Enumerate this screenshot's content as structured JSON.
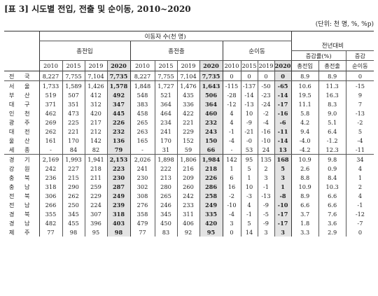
{
  "title": "[표 3] 시도별 전입, 전출 및 순이동, 2010~2020",
  "unit": "(단위: 천 명, %, %p)",
  "header": {
    "group": "이동자 수(천 명)",
    "in_out": [
      "총전입",
      "총전출"
    ],
    "net": "순이동",
    "compare": "전년대비",
    "rate": "증감률(%)",
    "change": "증감",
    "tail_cols": [
      "총전입",
      "총전출",
      "순이동"
    ],
    "years": [
      "2010",
      "2015",
      "2019",
      "2020"
    ]
  },
  "rows": [
    {
      "region": "전 국",
      "in": [
        "8,227",
        "7,755",
        "7,104",
        "7,735"
      ],
      "out": [
        "8,227",
        "7,755",
        "7,104",
        "7,735"
      ],
      "net": [
        "0",
        "0",
        "0",
        "0"
      ],
      "cmp": [
        "8.9",
        "8.9",
        "0"
      ]
    },
    {
      "region": "서 울",
      "in": [
        "1,733",
        "1,589",
        "1,426",
        "1,578"
      ],
      "out": [
        "1,848",
        "1,727",
        "1,476",
        "1,643"
      ],
      "net": [
        "-115",
        "-137",
        "-50",
        "-65"
      ],
      "cmp": [
        "10.6",
        "11.3",
        "-15"
      ]
    },
    {
      "region": "부 산",
      "in": [
        "519",
        "507",
        "412",
        "492"
      ],
      "out": [
        "548",
        "521",
        "435",
        "506"
      ],
      "net": [
        "-28",
        "-14",
        "-23",
        "-14"
      ],
      "cmp": [
        "19.5",
        "16.3",
        "9"
      ]
    },
    {
      "region": "대 구",
      "in": [
        "371",
        "351",
        "312",
        "347"
      ],
      "out": [
        "383",
        "364",
        "336",
        "364"
      ],
      "net": [
        "-12",
        "-13",
        "-24",
        "-17"
      ],
      "cmp": [
        "11.1",
        "8.3",
        "7"
      ]
    },
    {
      "region": "인 천",
      "in": [
        "462",
        "473",
        "420",
        "445"
      ],
      "out": [
        "458",
        "464",
        "422",
        "460"
      ],
      "net": [
        "4",
        "10",
        "-2",
        "-16"
      ],
      "cmp": [
        "5.8",
        "9.0",
        "-13"
      ]
    },
    {
      "region": "광 주",
      "in": [
        "269",
        "225",
        "217",
        "226"
      ],
      "out": [
        "265",
        "234",
        "221",
        "232"
      ],
      "net": [
        "4",
        "-9",
        "-4",
        "-6"
      ],
      "cmp": [
        "4.2",
        "5.1",
        "-2"
      ]
    },
    {
      "region": "대 전",
      "in": [
        "262",
        "221",
        "212",
        "232"
      ],
      "out": [
        "263",
        "241",
        "229",
        "243"
      ],
      "net": [
        "-1",
        "-21",
        "-16",
        "-11"
      ],
      "cmp": [
        "9.4",
        "6.4",
        "5"
      ]
    },
    {
      "region": "울 산",
      "in": [
        "161",
        "170",
        "142",
        "136"
      ],
      "out": [
        "165",
        "170",
        "152",
        "150"
      ],
      "net": [
        "-4",
        "-0",
        "-10",
        "-14"
      ],
      "cmp": [
        "-4.0",
        "-1.2",
        "-4"
      ]
    },
    {
      "region": "세 종",
      "in": [
        "-",
        "84",
        "82",
        "79"
      ],
      "out": [
        "-",
        "31",
        "59",
        "66"
      ],
      "net": [
        "-",
        "53",
        "24",
        "13"
      ],
      "cmp": [
        "-4.2",
        "12.3",
        "-11"
      ]
    },
    {
      "region": "경 기",
      "in": [
        "2,169",
        "1,993",
        "1,941",
        "2,153"
      ],
      "out": [
        "2,026",
        "1,898",
        "1,806",
        "1,984"
      ],
      "net": [
        "142",
        "95",
        "135",
        "168"
      ],
      "cmp": [
        "10.9",
        "9.8",
        "34"
      ]
    },
    {
      "region": "강 원",
      "in": [
        "242",
        "227",
        "218",
        "223"
      ],
      "out": [
        "241",
        "222",
        "216",
        "218"
      ],
      "net": [
        "1",
        "5",
        "2",
        "5"
      ],
      "cmp": [
        "2.6",
        "0.9",
        "4"
      ]
    },
    {
      "region": "충 북",
      "in": [
        "236",
        "215",
        "211",
        "230"
      ],
      "out": [
        "230",
        "213",
        "209",
        "226"
      ],
      "net": [
        "6",
        "1",
        "3",
        "3"
      ],
      "cmp": [
        "8.8",
        "8.4",
        "1"
      ]
    },
    {
      "region": "충 남",
      "in": [
        "318",
        "290",
        "259",
        "287"
      ],
      "out": [
        "302",
        "280",
        "260",
        "286"
      ],
      "net": [
        "16",
        "10",
        "-1",
        "1"
      ],
      "cmp": [
        "10.9",
        "10.3",
        "2"
      ]
    },
    {
      "region": "전 북",
      "in": [
        "306",
        "262",
        "229",
        "249"
      ],
      "out": [
        "308",
        "265",
        "242",
        "258"
      ],
      "net": [
        "-2",
        "-3",
        "-13",
        "-8"
      ],
      "cmp": [
        "8.9",
        "6.6",
        "4"
      ]
    },
    {
      "region": "전 남",
      "in": [
        "266",
        "250",
        "224",
        "239"
      ],
      "out": [
        "276",
        "246",
        "233",
        "249"
      ],
      "net": [
        "-10",
        "4",
        "-9",
        "-10"
      ],
      "cmp": [
        "6.6",
        "6.6",
        "-1"
      ]
    },
    {
      "region": "경 북",
      "in": [
        "355",
        "345",
        "307",
        "318"
      ],
      "out": [
        "358",
        "345",
        "311",
        "335"
      ],
      "net": [
        "-4",
        "-1",
        "-5",
        "-17"
      ],
      "cmp": [
        "3.7",
        "7.6",
        "-12"
      ]
    },
    {
      "region": "경 남",
      "in": [
        "482",
        "455",
        "396",
        "403"
      ],
      "out": [
        "479",
        "450",
        "406",
        "420"
      ],
      "net": [
        "3",
        "5",
        "-9",
        "-17"
      ],
      "cmp": [
        "1.8",
        "3.6",
        "-7"
      ]
    },
    {
      "region": "제 주",
      "in": [
        "77",
        "98",
        "95",
        "98"
      ],
      "out": [
        "77",
        "83",
        "92",
        "95"
      ],
      "net": [
        "0",
        "14",
        "3",
        "3"
      ],
      "cmp": [
        "3.3",
        "2.9",
        "0"
      ]
    }
  ]
}
